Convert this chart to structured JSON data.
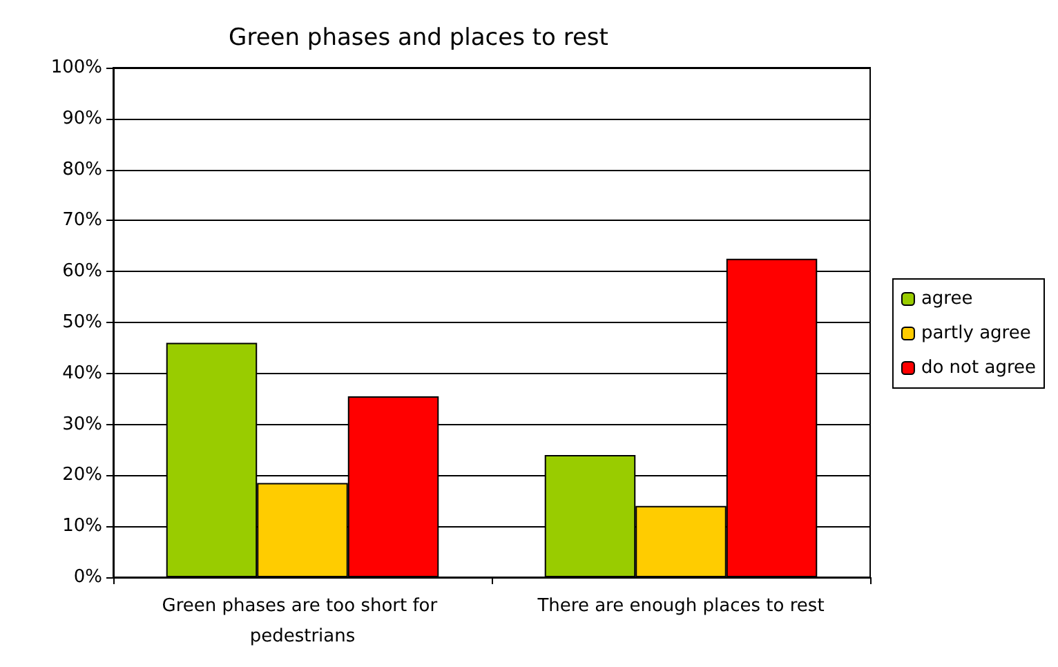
{
  "chart_data": {
    "type": "bar",
    "title": "Green phases and places to rest",
    "categories": [
      "Green phases are too short for pedestrians",
      "There are enough places to rest"
    ],
    "series": [
      {
        "name": "agree",
        "color": "#99cc00",
        "values": [
          46,
          24
        ]
      },
      {
        "name": "partly agree",
        "color": "#ffcc00",
        "values": [
          18.5,
          14
        ]
      },
      {
        "name": "do not agree",
        "color": "#ff0000",
        "values": [
          35.5,
          62.5
        ]
      }
    ],
    "ylim": [
      0,
      100
    ],
    "yticks": [
      {
        "value": 0,
        "label": "0%"
      },
      {
        "value": 10,
        "label": "10%"
      },
      {
        "value": 20,
        "label": "20%"
      },
      {
        "value": 30,
        "label": "30%"
      },
      {
        "value": 40,
        "label": "40%"
      },
      {
        "value": 50,
        "label": "50%"
      },
      {
        "value": 60,
        "label": "60%"
      },
      {
        "value": 70,
        "label": "70%"
      },
      {
        "value": 80,
        "label": "80%"
      },
      {
        "value": 90,
        "label": "90%"
      },
      {
        "value": 100,
        "label": "100%"
      }
    ],
    "grid": "y",
    "legend": "right"
  }
}
